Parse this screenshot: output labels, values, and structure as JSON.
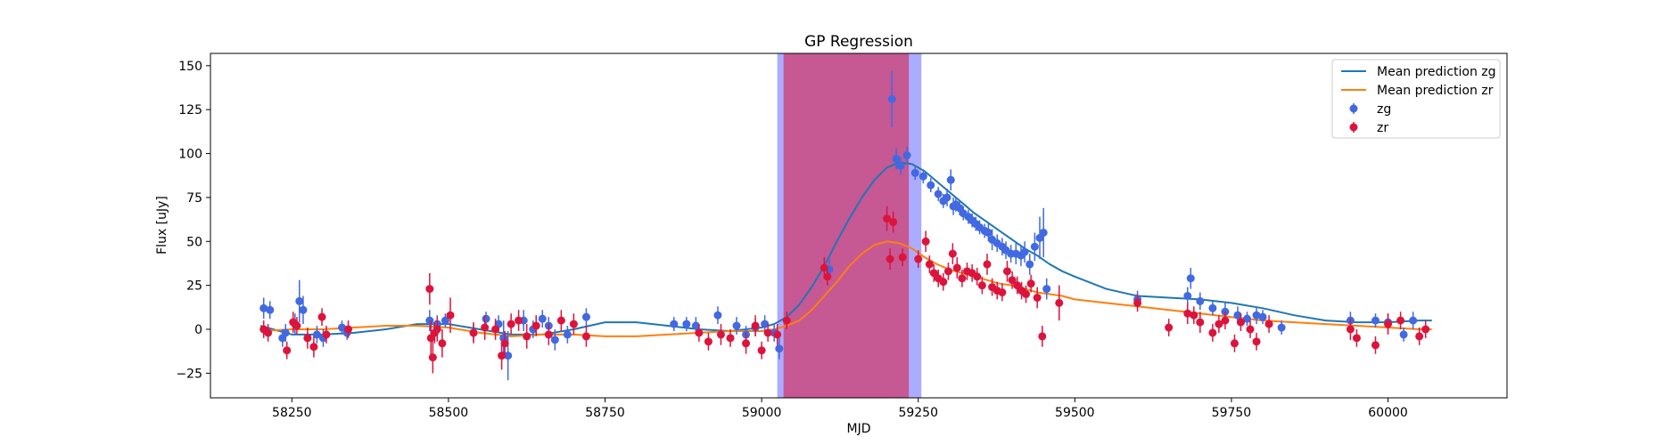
{
  "chart_data": {
    "type": "scatter",
    "title": "GP Regression",
    "xlabel": "MJD",
    "ylabel": "Flux [uJy]",
    "xlim": [
      58120,
      60190
    ],
    "ylim": [
      -39,
      157
    ],
    "xticks": [
      58250,
      58500,
      58750,
      59000,
      59250,
      59500,
      59750,
      60000
    ],
    "yticks": [
      -25,
      0,
      25,
      50,
      75,
      100,
      125,
      150
    ],
    "grid": false,
    "legend_position": "top-right",
    "shaded_regions": [
      {
        "x": [
          59025,
          59255
        ],
        "color": "#0000ff",
        "opacity": 0.33
      },
      {
        "x": [
          59035,
          59235
        ],
        "color": "#dc143c",
        "opacity": 0.55
      }
    ],
    "series": [
      {
        "name": "Mean prediction zg",
        "kind": "line",
        "color": "#1f77b4",
        "x": [
          58200,
          58250,
          58300,
          58350,
          58400,
          58450,
          58500,
          58550,
          58600,
          58650,
          58700,
          58750,
          58800,
          58850,
          58900,
          58950,
          59000,
          59020,
          59040,
          59060,
          59080,
          59100,
          59120,
          59140,
          59160,
          59180,
          59200,
          59220,
          59240,
          59260,
          59280,
          59300,
          59320,
          59340,
          59360,
          59380,
          59400,
          59420,
          59440,
          59460,
          59480,
          59500,
          59550,
          59600,
          59650,
          59700,
          59750,
          59800,
          59850,
          59900,
          59950,
          60000,
          60050,
          60070
        ],
        "y": [
          2,
          -3,
          -3,
          -2,
          0,
          3,
          3,
          0,
          -3,
          -3,
          0,
          4,
          4,
          2,
          0,
          -1,
          1,
          3,
          7,
          14,
          24,
          36,
          50,
          63,
          75,
          85,
          92,
          95,
          94,
          90,
          84,
          78,
          72,
          66,
          61,
          56,
          51,
          46,
          42,
          37,
          33,
          30,
          23,
          19,
          18,
          17,
          15,
          12,
          8,
          5,
          4,
          4,
          5,
          5
        ]
      },
      {
        "name": "Mean prediction zr",
        "kind": "line",
        "color": "#ff7f0e",
        "x": [
          58200,
          58250,
          58300,
          58350,
          58400,
          58450,
          58500,
          58550,
          58600,
          58650,
          58700,
          58750,
          58800,
          58850,
          58900,
          58950,
          59000,
          59020,
          59040,
          59060,
          59080,
          59100,
          59120,
          59140,
          59160,
          59180,
          59200,
          59220,
          59240,
          59260,
          59280,
          59300,
          59320,
          59340,
          59360,
          59380,
          59400,
          59420,
          59440,
          59460,
          59480,
          59500,
          59550,
          59600,
          59650,
          59700,
          59750,
          59800,
          59850,
          59900,
          59950,
          60000,
          60050,
          60070
        ],
        "y": [
          -1,
          0,
          0,
          1,
          2,
          2,
          1,
          -2,
          -4,
          -3,
          -3,
          -4,
          -4,
          -3,
          -2,
          -1,
          -1,
          0,
          2,
          5,
          11,
          19,
          27,
          36,
          43,
          48,
          50,
          49,
          46,
          41,
          37,
          34,
          32,
          30,
          28,
          26,
          25,
          23,
          21,
          20,
          19,
          17,
          15,
          13,
          11,
          9,
          7,
          5,
          4,
          3,
          2,
          1,
          0,
          0
        ]
      },
      {
        "name": "zg",
        "kind": "errorbar",
        "color": "#4169e1",
        "x": [
          58205,
          58215,
          58235,
          58240,
          58255,
          58262,
          58268,
          58290,
          58300,
          58330,
          58338,
          58470,
          58482,
          58495,
          58540,
          58560,
          58580,
          58588,
          58595,
          58620,
          58635,
          58650,
          58660,
          58670,
          58690,
          58720,
          58860,
          58880,
          58895,
          58930,
          58960,
          58975,
          58990,
          59005,
          59020,
          59028,
          59108,
          59208,
          59215,
          59222,
          59232,
          59245,
          59258,
          59270,
          59282,
          59290,
          59296,
          59302,
          59306,
          59310,
          59316,
          59322,
          59330,
          59336,
          59342,
          59348,
          59356,
          59362,
          59368,
          59376,
          59384,
          59390,
          59398,
          59406,
          59414,
          59420,
          59428,
          59436,
          59444,
          59450,
          59455,
          59600,
          59680,
          59685,
          59700,
          59720,
          59740,
          59760,
          59775,
          59790,
          59800,
          59830,
          59940,
          59980,
          60000,
          60025,
          60040
        ],
        "y": [
          12,
          11,
          -5,
          -2,
          3,
          16,
          11,
          -3,
          -5,
          1,
          -2,
          5,
          3,
          5,
          -2,
          6,
          3,
          -5,
          -15,
          5,
          0,
          6,
          2,
          -6,
          -3,
          7,
          3,
          3,
          2,
          8,
          2,
          -3,
          1,
          3,
          -2,
          -11,
          34,
          131,
          97,
          93,
          99,
          89,
          87,
          82,
          77,
          73,
          75,
          85,
          70,
          71,
          69,
          66,
          64,
          62,
          60,
          58,
          56,
          55,
          51,
          49,
          47,
          45,
          43,
          43,
          42,
          44,
          37,
          47,
          52,
          55,
          23,
          17,
          19,
          29,
          16,
          12,
          10,
          8,
          6,
          8,
          7,
          1,
          5,
          5,
          4,
          -3,
          5
        ],
        "err": [
          6,
          5,
          5,
          5,
          6,
          12,
          8,
          5,
          5,
          4,
          4,
          6,
          5,
          4,
          5,
          4,
          5,
          10,
          14,
          6,
          5,
          5,
          5,
          6,
          5,
          5,
          4,
          4,
          5,
          5,
          5,
          5,
          5,
          5,
          5,
          6,
          6,
          16,
          6,
          5,
          5,
          4,
          4,
          4,
          4,
          4,
          5,
          6,
          5,
          4,
          4,
          4,
          4,
          4,
          4,
          4,
          4,
          5,
          6,
          5,
          5,
          5,
          5,
          6,
          6,
          6,
          6,
          8,
          12,
          14,
          6,
          5,
          5,
          6,
          5,
          4,
          5,
          5,
          4,
          5,
          4,
          4,
          5,
          4,
          5,
          4,
          5
        ]
      },
      {
        "name": "zr",
        "kind": "errorbar",
        "color": "#dc143c",
        "x": [
          58205,
          58212,
          58242,
          58252,
          58258,
          58275,
          58285,
          58298,
          58305,
          58340,
          58470,
          58472,
          58475,
          58478,
          58482,
          58490,
          58503,
          58540,
          58558,
          58575,
          58585,
          58590,
          58600,
          58612,
          58625,
          58640,
          58660,
          58680,
          58700,
          58720,
          58900,
          58915,
          58935,
          58950,
          58975,
          58990,
          59000,
          59010,
          59025,
          59040,
          59100,
          59105,
          59200,
          59205,
          59210,
          59225,
          59250,
          59262,
          59268,
          59275,
          59282,
          59290,
          59298,
          59305,
          59312,
          59320,
          59328,
          59336,
          59344,
          59352,
          59360,
          59368,
          59376,
          59384,
          59392,
          59400,
          59408,
          59415,
          59422,
          59430,
          59440,
          59448,
          59475,
          59600,
          59650,
          59680,
          59690,
          59700,
          59720,
          59730,
          59740,
          59755,
          59765,
          59780,
          59790,
          59810,
          59940,
          59950,
          59980,
          60000,
          60020,
          60050,
          60060
        ],
        "y": [
          0,
          -2,
          -12,
          4,
          2,
          -5,
          -10,
          7,
          -3,
          0,
          23,
          -5,
          -16,
          -2,
          0,
          -8,
          8,
          -2,
          1,
          0,
          -15,
          -8,
          3,
          5,
          -4,
          2,
          -3,
          5,
          3,
          -4,
          -2,
          -7,
          -3,
          -5,
          -8,
          2,
          -12,
          -2,
          -3,
          5,
          35,
          30,
          63,
          40,
          61,
          41,
          40,
          50,
          37,
          32,
          29,
          27,
          33,
          43,
          35,
          29,
          33,
          32,
          30,
          25,
          37,
          24,
          22,
          21,
          33,
          28,
          25,
          22,
          20,
          26,
          18,
          -4,
          15,
          15,
          1,
          9,
          8,
          4,
          -2,
          3,
          5,
          -8,
          4,
          0,
          -7,
          3,
          0,
          -5,
          -9,
          3,
          5,
          -4,
          0
        ],
        "err": [
          5,
          5,
          5,
          6,
          5,
          6,
          6,
          5,
          5,
          5,
          9,
          10,
          9,
          6,
          7,
          8,
          10,
          6,
          7,
          6,
          8,
          7,
          6,
          6,
          7,
          6,
          6,
          6,
          6,
          6,
          5,
          5,
          6,
          5,
          6,
          6,
          5,
          5,
          6,
          5,
          6,
          5,
          7,
          6,
          6,
          5,
          5,
          6,
          5,
          5,
          5,
          5,
          5,
          6,
          6,
          5,
          5,
          5,
          5,
          5,
          6,
          5,
          5,
          5,
          6,
          5,
          5,
          5,
          5,
          5,
          6,
          6,
          10,
          5,
          5,
          6,
          5,
          6,
          5,
          5,
          5,
          5,
          5,
          5,
          5,
          5,
          6,
          5,
          5,
          6,
          5,
          5,
          5
        ]
      }
    ]
  }
}
